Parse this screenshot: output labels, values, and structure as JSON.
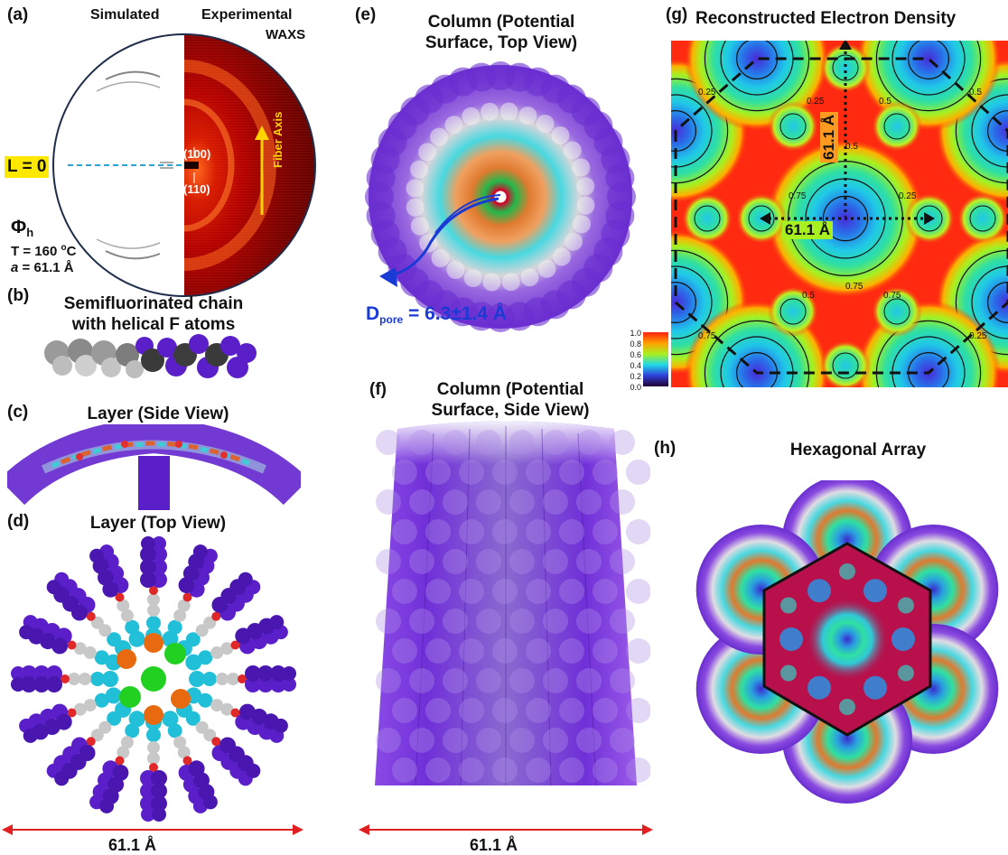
{
  "panels": {
    "a": {
      "label": "(a)",
      "simulated": "Simulated",
      "experimental": "Experimental",
      "waxs": "WAXS",
      "l_zero": "L = 0",
      "peak_100": "(100)",
      "peak_110": "(110)",
      "fiber_axis": "Fiber Axis",
      "phase_main": "Φ",
      "phase_sub": "h",
      "temp_pre": "T = 160 ",
      "temp_sup": "o",
      "temp_post": "C",
      "lattice_var": "a",
      "lattice_val": " = 61.1 Å"
    },
    "b": {
      "label": "(b)",
      "title_line1": "Semifluorinated chain",
      "title_line2": "with helical F atoms"
    },
    "c": {
      "label": "(c)",
      "title": "Layer (Side View)"
    },
    "d": {
      "label": "(d)",
      "title": "Layer (Top View)",
      "dimension": "61.1 Å"
    },
    "e": {
      "label": "(e)",
      "title_line1": "Column (Potential",
      "title_line2": "Surface, Top View)",
      "pore_pre": "D",
      "pore_sub": "pore",
      "pore_post": " = 6.3±1.4 Å"
    },
    "f": {
      "label": "(f)",
      "title_line1": "Column (Potential",
      "title_line2": "Surface, Side View)",
      "dimension": "61.1 Å"
    },
    "g": {
      "label": "(g)",
      "title": "Reconstructed Electron Density",
      "dim_vertical": "61.1 Å",
      "dim_horizontal": "61.1 Å",
      "contour_labels": [
        "0.25",
        "0.5",
        "0.75"
      ],
      "colorbar_ticks": [
        "1.0",
        "0.8",
        "0.6",
        "0.4",
        "0.2",
        "0.0"
      ]
    },
    "h": {
      "label": "(h)",
      "title": "Hexagonal Array"
    }
  },
  "colors": {
    "arrow_red": "#e02020",
    "pore_blue": "#1a3ad6",
    "highlight_yellow": "#ffe800",
    "fiber_arrow": "#ffd400",
    "fluorine_purple": "#5a1fc8",
    "density_red": "#ff2a10"
  }
}
